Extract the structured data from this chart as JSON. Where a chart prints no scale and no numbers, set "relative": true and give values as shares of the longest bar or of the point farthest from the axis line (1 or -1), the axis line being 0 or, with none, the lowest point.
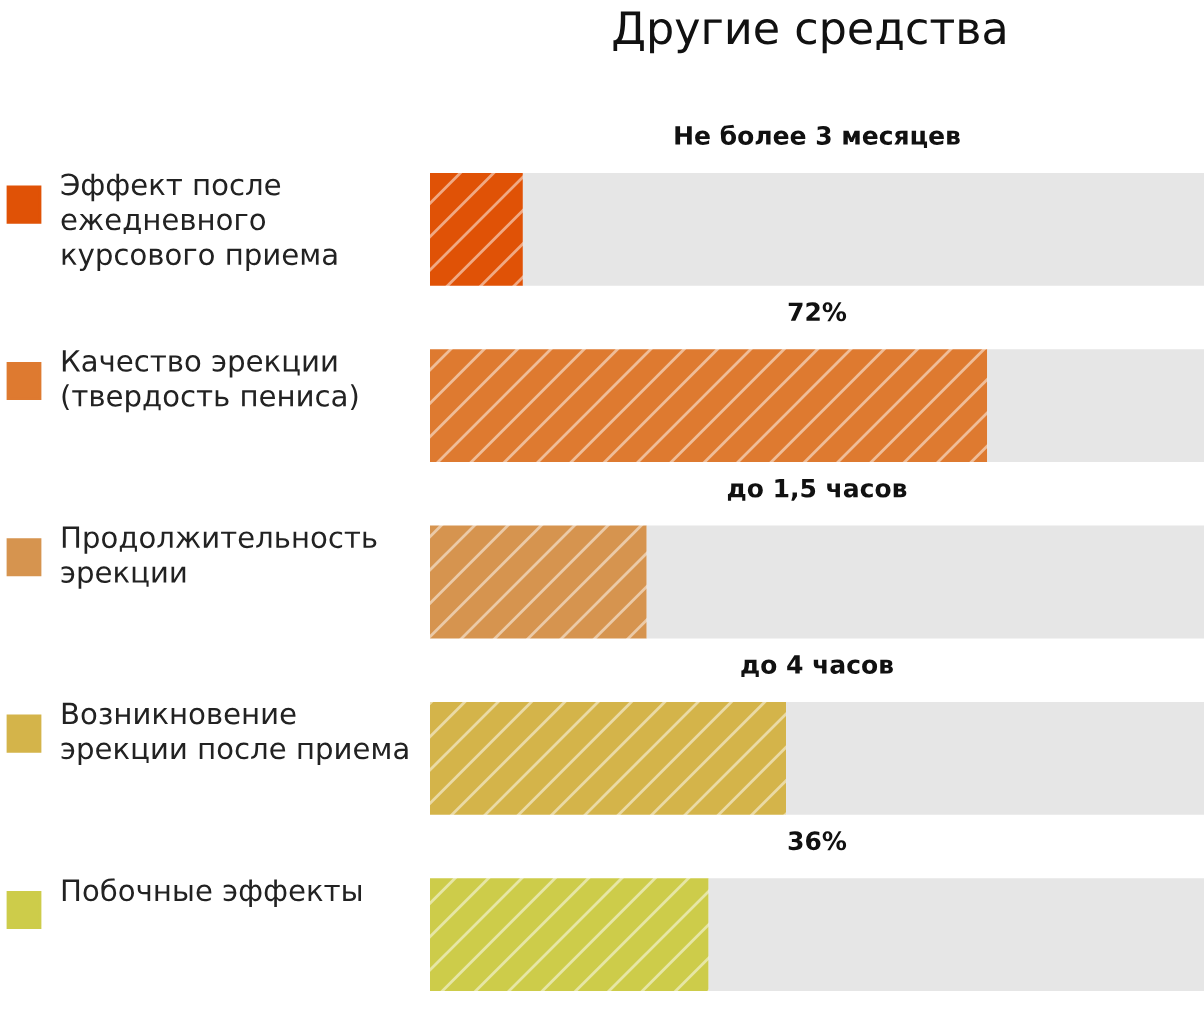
{
  "chart_data": {
    "type": "bar",
    "orientation": "horizontal",
    "relative": true,
    "stacked": true,
    "title": "Другие средства",
    "categories": [
      "Эффект после\nежедневного\nкурсового приема",
      "Качество эрекции\n(твердость пениса)",
      "Продолжительность\nэрекции",
      "Возникновение\nэрекции после приема",
      "Побочные эффекты"
    ],
    "series": [
      {
        "colors": [
          "#e05206",
          "#de7a30",
          "#d6944f",
          "#d4b44a",
          "#cdcc4a"
        ],
        "values": [
          0.12,
          0.72,
          0.28,
          0.46,
          0.36
        ]
      },
      {
        "color": "#e6e6e6",
        "values": [
          0.88,
          0.28,
          0.72,
          0.54,
          0.64
        ]
      }
    ],
    "annotations": [
      "Не более 3 месяцев",
      "72%",
      "до 1,5 часов",
      "до 4 часов",
      "36%"
    ]
  }
}
